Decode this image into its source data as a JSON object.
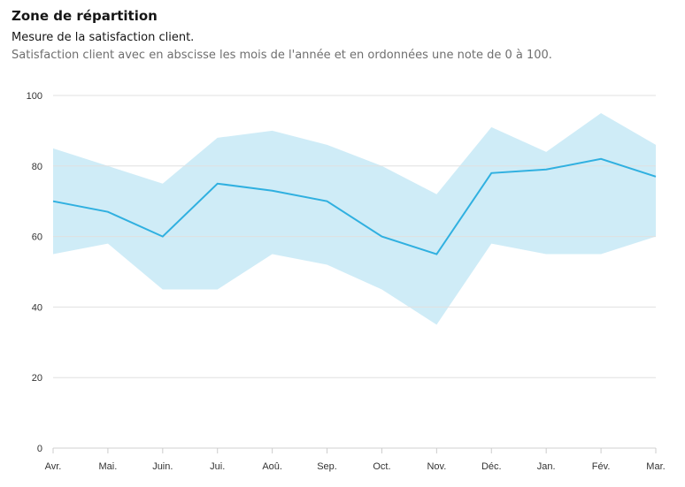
{
  "chart_data": {
    "type": "area",
    "title": "Zone de répartition",
    "subtitle": "Mesure de la satisfaction client.",
    "description": "Satisfaction client avec en abscisse les mois de l'année et en ordonnées une note de 0 à 100.",
    "categories": [
      "Avr.",
      "Mai.",
      "Juin.",
      "Jui.",
      "Aoû.",
      "Sep.",
      "Oct.",
      "Nov.",
      "Déc.",
      "Jan.",
      "Fév.",
      "Mar."
    ],
    "ylim": [
      0,
      100
    ],
    "yticks": [
      0,
      20,
      40,
      60,
      80,
      100
    ],
    "grid": true,
    "series": [
      {
        "type": "line",
        "values": [
          70,
          67,
          60,
          75,
          73,
          70,
          60,
          55,
          78,
          79,
          82,
          77
        ]
      },
      {
        "type": "range",
        "upper": [
          85,
          80,
          75,
          88,
          90,
          86,
          80,
          72,
          91,
          84,
          95,
          86
        ],
        "lower": [
          55,
          58,
          45,
          45,
          55,
          52,
          45,
          35,
          58,
          55,
          55,
          60
        ]
      }
    ],
    "colors": {
      "line": "#30b0e0",
      "area": "#cfecf7",
      "grid": "#e0e0e0"
    }
  }
}
